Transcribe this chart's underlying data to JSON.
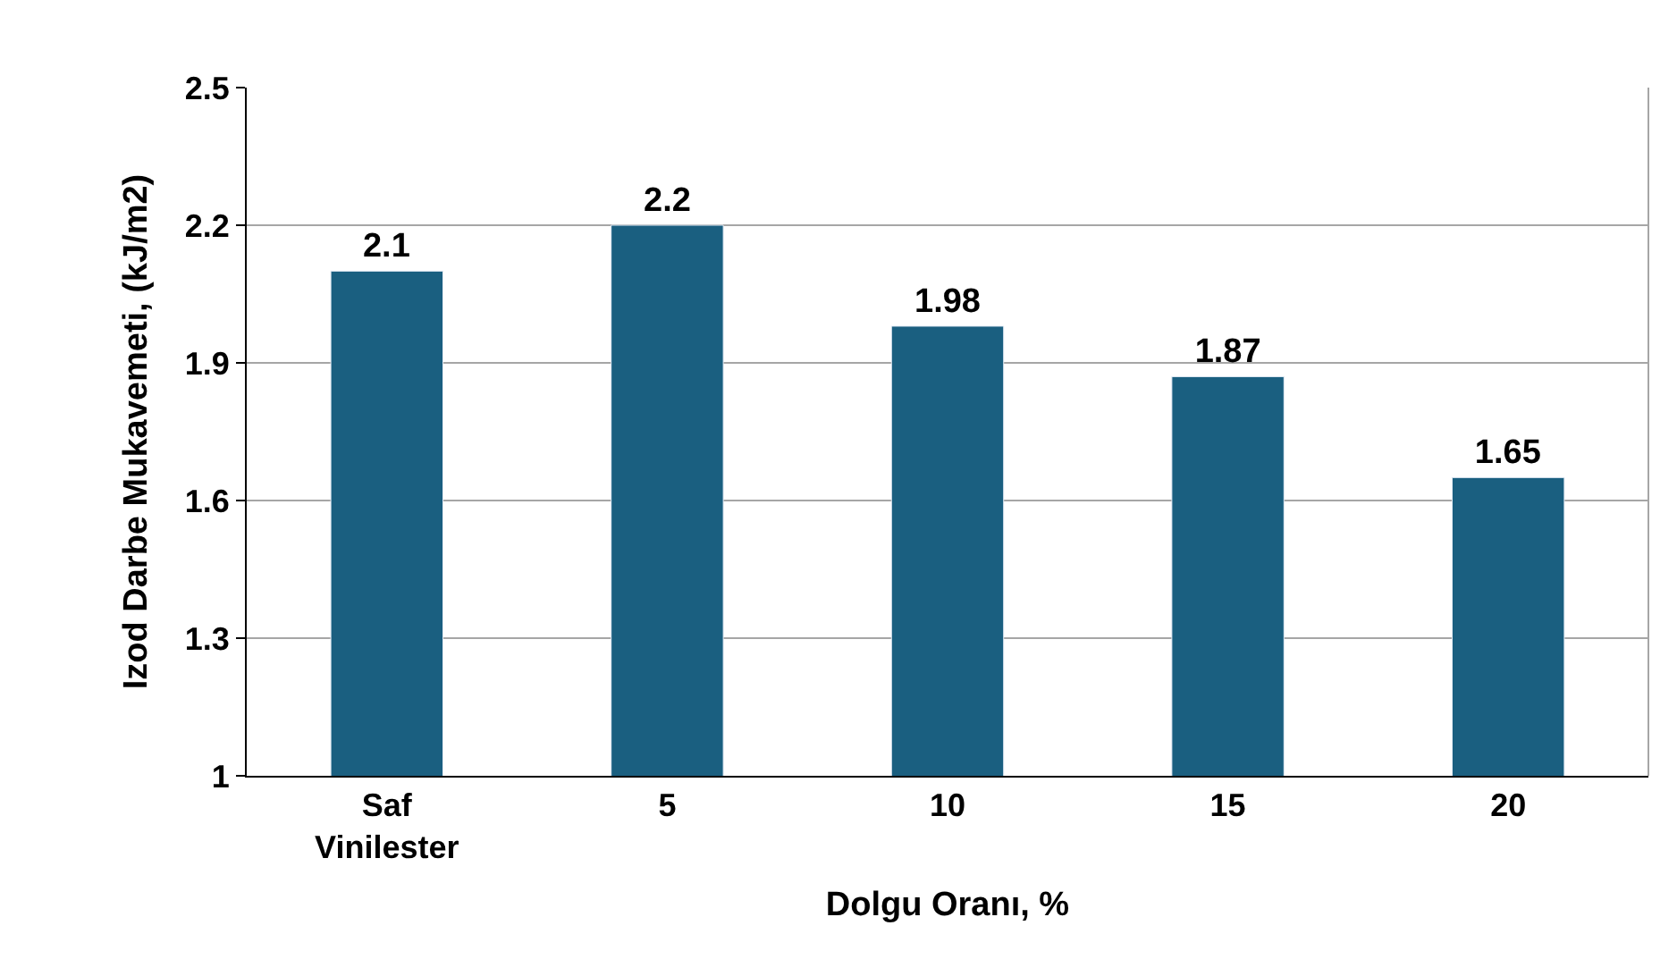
{
  "chart_data": {
    "type": "bar",
    "xlabel": "Dolgu Oranı, %",
    "ylabel": "Izod Darbe Mukavemeti, (kJ/m2)",
    "categories": [
      "Saf\nVinilester",
      "5",
      "10",
      "15",
      "20"
    ],
    "values": [
      2.1,
      2.2,
      1.98,
      1.87,
      1.65
    ],
    "color": "#1a5f80",
    "ylim": [
      1,
      2.5
    ],
    "yticks": [
      1,
      1.3,
      1.6,
      1.9,
      2.2,
      2.5
    ],
    "grid": "y",
    "data_labels": true
  }
}
